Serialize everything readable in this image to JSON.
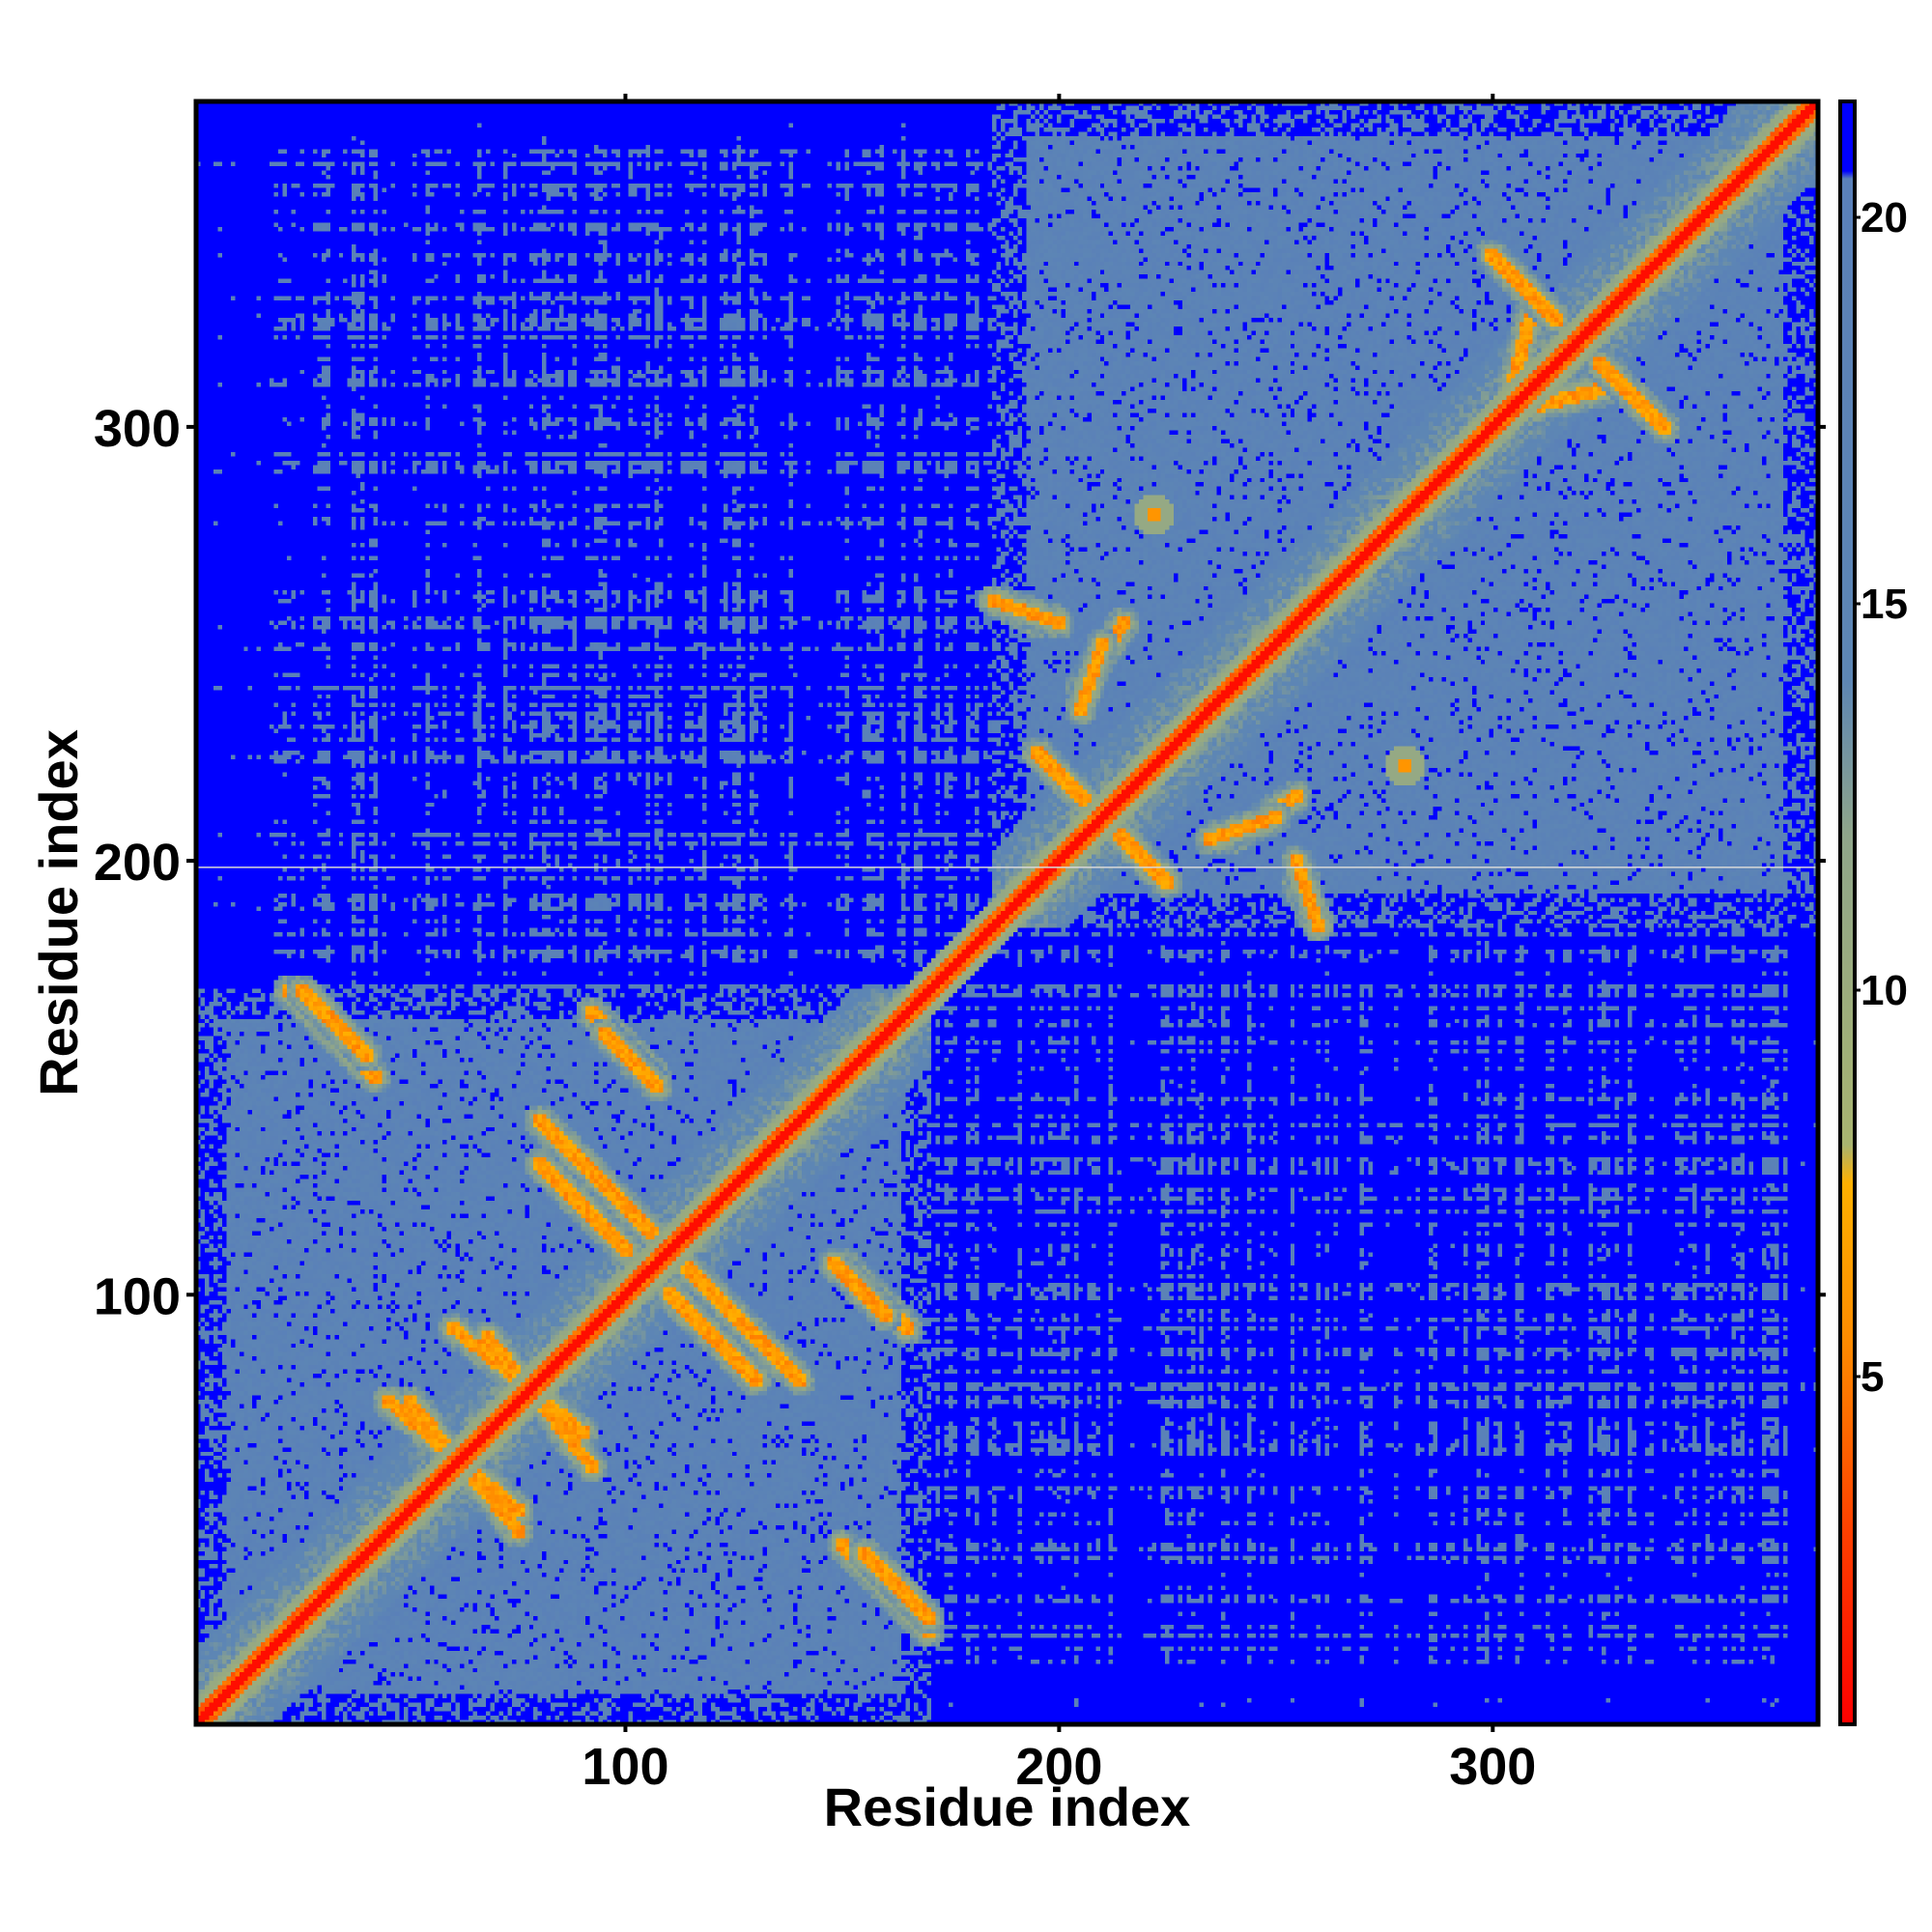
{
  "chart_data": {
    "type": "heatmap",
    "title": "",
    "xlabel": "Residue index",
    "ylabel": "Residue index",
    "n_residues": 375,
    "xlim": [
      1,
      375
    ],
    "ylim": [
      1,
      375
    ],
    "x_ticks": [
      100,
      200,
      300
    ],
    "y_ticks": [
      100,
      200,
      300
    ],
    "colorbar": {
      "min": 0.5,
      "max": 21.5,
      "ticks": [
        5,
        10,
        15,
        20
      ],
      "stops": [
        {
          "value": 0.5,
          "color": "#ff0000"
        },
        {
          "value": 3.0,
          "color": "#ff4000"
        },
        {
          "value": 5.5,
          "color": "#ff8c00"
        },
        {
          "value": 7.5,
          "color": "#ffb000"
        },
        {
          "value": 8.0,
          "color": "#a8b470"
        },
        {
          "value": 12.0,
          "color": "#8fa58a"
        },
        {
          "value": 14.0,
          "color": "#5d86b4"
        },
        {
          "value": 20.5,
          "color": "#5a80b8"
        },
        {
          "value": 20.6,
          "color": "#0000ff"
        },
        {
          "value": 21.5,
          "color": "#0000ff"
        }
      ]
    },
    "domains": [
      {
        "start": 1,
        "end": 170
      },
      {
        "start": 185,
        "end": 375
      }
    ],
    "contact_bands": [
      {
        "x1": 25,
        "y1": 170,
        "x2": 40,
        "y2": 155
      },
      {
        "x1": 95,
        "y1": 160,
        "x2": 107,
        "y2": 148
      },
      {
        "x1": 150,
        "y1": 42,
        "x2": 170,
        "y2": 22
      },
      {
        "x1": 150,
        "y1": 107,
        "x2": 165,
        "y2": 92
      },
      {
        "x1": 110,
        "y1": 110,
        "x2": 140,
        "y2": 80
      },
      {
        "x1": 80,
        "y1": 130,
        "x2": 100,
        "y2": 110
      },
      {
        "x1": 60,
        "y1": 92,
        "x2": 90,
        "y2": 68
      },
      {
        "x1": 45,
        "y1": 75,
        "x2": 75,
        "y2": 50
      },
      {
        "x1": 205,
        "y1": 235,
        "x2": 210,
        "y2": 250
      },
      {
        "x1": 210,
        "y1": 210,
        "x2": 225,
        "y2": 195
      },
      {
        "x1": 185,
        "y1": 260,
        "x2": 200,
        "y2": 255
      },
      {
        "x1": 240,
        "y1": 205,
        "x2": 255,
        "y2": 215
      },
      {
        "x1": 260,
        "y1": 185,
        "x2": 255,
        "y2": 195
      },
      {
        "x1": 300,
        "y1": 340,
        "x2": 315,
        "y2": 325
      },
      {
        "x1": 310,
        "y1": 305,
        "x2": 330,
        "y2": 310
      }
    ],
    "contact_spots": [
      {
        "x": 222,
        "y": 280
      },
      {
        "x": 280,
        "y": 222
      }
    ]
  }
}
